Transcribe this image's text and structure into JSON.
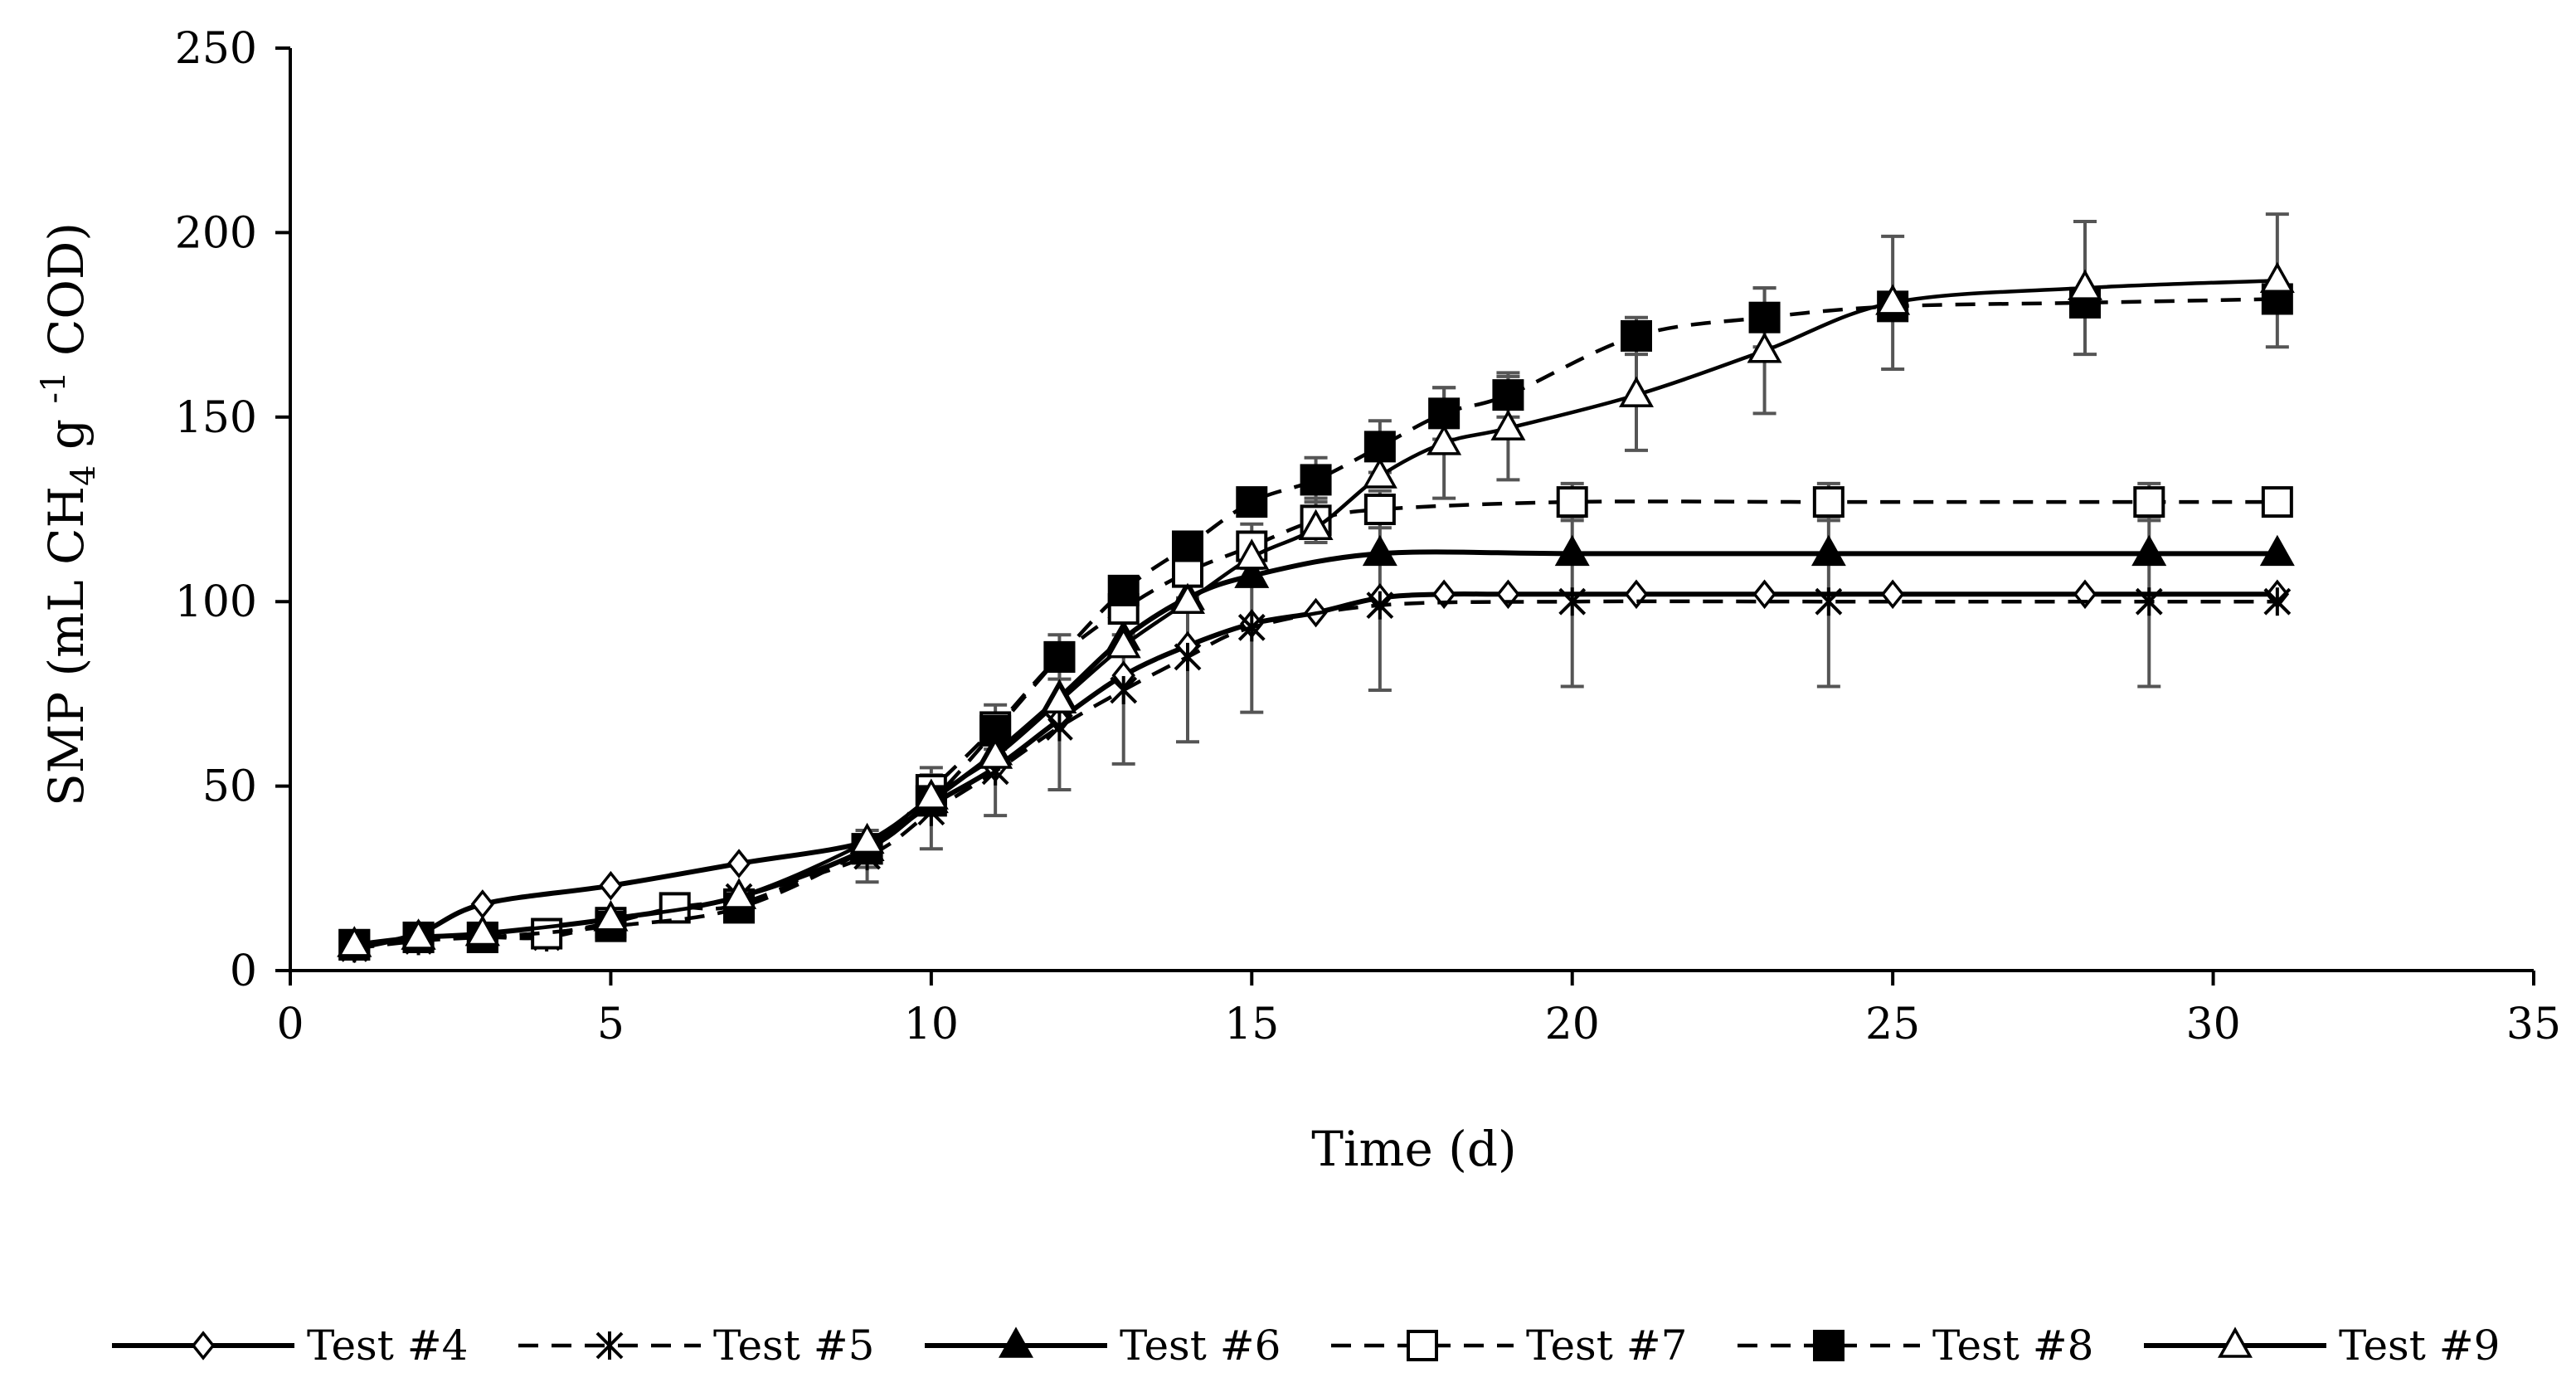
{
  "chart_data": {
    "type": "line",
    "title": "",
    "xlabel": "Time (d)",
    "ylabel": {
      "prefix": "SMP (mL CH",
      "sub": "4",
      "middle": " g ",
      "sup": "-1",
      "suffix": " COD)"
    },
    "xlim": [
      0,
      35
    ],
    "ylim": [
      0,
      250
    ],
    "xticks": [
      0,
      5,
      10,
      15,
      20,
      25,
      30,
      35
    ],
    "yticks": [
      0,
      50,
      100,
      150,
      200,
      250
    ],
    "grid": false,
    "legend_position": "bottom",
    "series": [
      {
        "name": "Test #4",
        "line": "solid",
        "marker": "diamond-open",
        "x": [
          1,
          2,
          3,
          5,
          7,
          9,
          10,
          11,
          12,
          13,
          14,
          15,
          16,
          17,
          18,
          19,
          21,
          23,
          25,
          28,
          31
        ],
        "y": [
          6,
          10,
          18,
          23,
          29,
          35,
          45,
          55,
          68,
          80,
          88,
          94,
          97,
          101,
          102,
          102,
          102,
          102,
          102,
          102,
          102
        ],
        "err": [
          0,
          0,
          0,
          0,
          0,
          0,
          0,
          0,
          0,
          0,
          0,
          0,
          0,
          0,
          0,
          0,
          0,
          0,
          0,
          0,
          0
        ]
      },
      {
        "name": "Test #5",
        "line": "dashed",
        "marker": "star",
        "x": [
          1,
          2,
          3,
          4,
          5,
          6,
          7,
          9,
          10,
          11,
          12,
          13,
          14,
          15,
          17,
          20,
          24,
          29,
          31
        ],
        "y": [
          6,
          8,
          9,
          9,
          13,
          17,
          20,
          31,
          43,
          54,
          66,
          76,
          85,
          93,
          99,
          100,
          100,
          100,
          100
        ],
        "err": [
          0,
          0,
          0,
          0,
          0,
          0,
          0,
          7,
          10,
          12,
          17,
          20,
          23,
          23,
          23,
          23,
          23,
          23,
          0
        ]
      },
      {
        "name": "Test #6",
        "line": "solid",
        "marker": "triangle-filled",
        "x": [
          1,
          2,
          3,
          5,
          7,
          9,
          10,
          11,
          12,
          13,
          14,
          15,
          17,
          20,
          24,
          29,
          31
        ],
        "y": [
          7,
          9,
          10,
          14,
          20,
          33,
          46,
          59,
          74,
          90,
          101,
          107,
          113,
          113,
          113,
          113,
          113
        ],
        "err": [
          0,
          0,
          0,
          0,
          0,
          0,
          0,
          0,
          0,
          0,
          0,
          0,
          0,
          0,
          0,
          0,
          0
        ]
      },
      {
        "name": "Test #7",
        "line": "dashed",
        "marker": "square-open",
        "x": [
          1,
          2,
          3,
          4,
          5,
          6,
          7,
          9,
          10,
          11,
          12,
          13,
          14,
          15,
          16,
          17,
          20,
          24,
          29,
          31
        ],
        "y": [
          7,
          9,
          9,
          10,
          13,
          17,
          18,
          33,
          49,
          66,
          85,
          98,
          108,
          115,
          122,
          125,
          127,
          127,
          127,
          127
        ],
        "err": [
          0,
          0,
          0,
          0,
          0,
          0,
          0,
          5,
          6,
          6,
          6,
          7,
          7,
          6,
          6,
          5,
          5,
          5,
          5,
          0
        ]
      },
      {
        "name": "Test #8",
        "line": "dashed",
        "marker": "square-filled",
        "x": [
          1,
          2,
          3,
          5,
          7,
          9,
          10,
          11,
          12,
          13,
          14,
          15,
          16,
          17,
          18,
          19,
          21,
          23,
          25,
          28,
          31
        ],
        "y": [
          7,
          9,
          9,
          12,
          17,
          33,
          46,
          65,
          85,
          103,
          115,
          127,
          133,
          142,
          151,
          156,
          172,
          177,
          180,
          181,
          182
        ],
        "err": [
          0,
          0,
          0,
          0,
          0,
          0,
          0,
          0,
          0,
          0,
          0,
          0,
          6,
          7,
          7,
          6,
          5,
          8,
          0,
          0,
          0
        ]
      },
      {
        "name": "Test #9",
        "line": "solid",
        "marker": "triangle-open",
        "x": [
          1,
          2,
          3,
          5,
          7,
          9,
          10,
          11,
          12,
          13,
          14,
          15,
          16,
          17,
          18,
          19,
          21,
          23,
          25,
          28,
          31
        ],
        "y": [
          7,
          9,
          10,
          14,
          20,
          35,
          47,
          58,
          73,
          88,
          100,
          112,
          120,
          134,
          143,
          147,
          156,
          168,
          181,
          185,
          187
        ],
        "err": [
          0,
          0,
          0,
          0,
          0,
          0,
          0,
          0,
          0,
          0,
          0,
          0,
          0,
          0,
          15,
          14,
          15,
          17,
          18,
          18,
          18
        ]
      }
    ]
  }
}
